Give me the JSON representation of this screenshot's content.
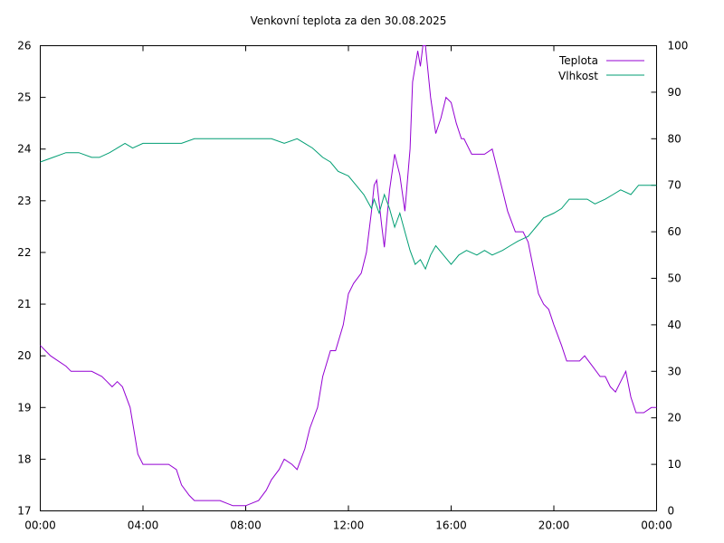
{
  "chart_data": {
    "type": "line",
    "title": "Venkovní teplota za den 30.08.2025",
    "xlabel": "",
    "ylabel": "",
    "y2label": "",
    "x_unit": "hours",
    "xlim": [
      0,
      24
    ],
    "ylim": [
      17,
      26
    ],
    "y2lim": [
      0,
      100
    ],
    "grid": false,
    "legend_position": "top-right",
    "x_tick_labels": [
      {
        "x": 0,
        "label": "00:00"
      },
      {
        "x": 4,
        "label": "04:00"
      },
      {
        "x": 8,
        "label": "08:00"
      },
      {
        "x": 12,
        "label": "12:00"
      },
      {
        "x": 16,
        "label": "16:00"
      },
      {
        "x": 20,
        "label": "20:00"
      },
      {
        "x": 24,
        "label": "00:00"
      }
    ],
    "y_ticks": [
      17,
      18,
      19,
      20,
      21,
      22,
      23,
      24,
      25,
      26
    ],
    "y2_ticks": [
      0,
      10,
      20,
      30,
      40,
      50,
      60,
      70,
      80,
      90,
      100
    ],
    "series": [
      {
        "name": "Teplota",
        "axis": "left",
        "color": "#9400d3",
        "x": [
          0,
          0.2,
          0.4,
          0.7,
          1.0,
          1.2,
          1.5,
          2.0,
          2.4,
          2.6,
          2.8,
          3.0,
          3.2,
          3.5,
          3.7,
          3.8,
          4.0,
          4.2,
          4.5,
          5.0,
          5.3,
          5.5,
          5.8,
          6.0,
          6.5,
          7.0,
          7.5,
          8.0,
          8.5,
          8.8,
          9.0,
          9.3,
          9.5,
          9.8,
          10.0,
          10.3,
          10.5,
          10.8,
          11.0,
          11.3,
          11.5,
          11.8,
          12.0,
          12.2,
          12.5,
          12.7,
          12.9,
          13.0,
          13.1,
          13.3,
          13.4,
          13.6,
          13.8,
          14.0,
          14.2,
          14.4,
          14.5,
          14.7,
          14.8,
          14.9,
          15.0,
          15.2,
          15.4,
          15.6,
          15.8,
          16.0,
          16.2,
          16.4,
          16.5,
          16.8,
          17.0,
          17.3,
          17.6,
          17.8,
          18.0,
          18.2,
          18.5,
          18.8,
          19.0,
          19.2,
          19.4,
          19.6,
          19.8,
          20.0,
          20.3,
          20.5,
          20.7,
          21.0,
          21.2,
          21.5,
          21.8,
          22.0,
          22.2,
          22.4,
          22.6,
          22.8,
          23.0,
          23.2,
          23.5,
          23.8,
          24.0
        ],
        "y": [
          20.2,
          20.1,
          20.0,
          19.9,
          19.8,
          19.7,
          19.7,
          19.7,
          19.6,
          19.5,
          19.4,
          19.5,
          19.4,
          19.0,
          18.4,
          18.1,
          17.9,
          17.9,
          17.9,
          17.9,
          17.8,
          17.5,
          17.3,
          17.2,
          17.2,
          17.2,
          17.1,
          17.1,
          17.2,
          17.4,
          17.6,
          17.8,
          18.0,
          17.9,
          17.8,
          18.2,
          18.6,
          19.0,
          19.6,
          20.1,
          20.1,
          20.6,
          21.2,
          21.4,
          21.6,
          22.0,
          22.8,
          23.3,
          23.4,
          22.5,
          22.1,
          23.2,
          23.9,
          23.5,
          22.8,
          24.0,
          25.3,
          25.9,
          25.6,
          26.0,
          26.0,
          25.0,
          24.3,
          24.6,
          25.0,
          24.9,
          24.5,
          24.2,
          24.2,
          23.9,
          23.9,
          23.9,
          24.0,
          23.6,
          23.2,
          22.8,
          22.4,
          22.4,
          22.2,
          21.7,
          21.2,
          21.0,
          20.9,
          20.6,
          20.2,
          19.9,
          19.9,
          19.9,
          20.0,
          19.8,
          19.6,
          19.6,
          19.4,
          19.3,
          19.5,
          19.7,
          19.2,
          18.9,
          18.9,
          19.0,
          19.0
        ]
      },
      {
        "name": "Vlhkost",
        "axis": "right",
        "color": "#009e73",
        "x": [
          0,
          0.5,
          1.0,
          1.5,
          2.0,
          2.3,
          2.7,
          3.0,
          3.3,
          3.6,
          4.0,
          4.5,
          5.0,
          5.5,
          6.0,
          6.5,
          7.0,
          7.5,
          8.0,
          8.5,
          9.0,
          9.5,
          10.0,
          10.3,
          10.6,
          11.0,
          11.3,
          11.6,
          12.0,
          12.3,
          12.6,
          12.9,
          13.0,
          13.2,
          13.4,
          13.6,
          13.8,
          14.0,
          14.2,
          14.4,
          14.6,
          14.8,
          15.0,
          15.2,
          15.4,
          15.7,
          16.0,
          16.3,
          16.6,
          17.0,
          17.3,
          17.6,
          18.0,
          18.3,
          18.6,
          19.0,
          19.3,
          19.6,
          20.0,
          20.3,
          20.6,
          21.0,
          21.3,
          21.6,
          22.0,
          22.3,
          22.6,
          23.0,
          23.3,
          23.6,
          24.0
        ],
        "y": [
          75,
          76,
          77,
          77,
          76,
          76,
          77,
          78,
          79,
          78,
          79,
          79,
          79,
          79,
          80,
          80,
          80,
          80,
          80,
          80,
          80,
          79,
          80,
          79,
          78,
          76,
          75,
          73,
          72,
          70,
          68,
          65,
          67,
          64,
          68,
          65,
          61,
          64,
          60,
          56,
          53,
          54,
          52,
          55,
          57,
          55,
          53,
          55,
          56,
          55,
          56,
          55,
          56,
          57,
          58,
          59,
          61,
          63,
          64,
          65,
          67,
          67,
          67,
          66,
          67,
          68,
          69,
          68,
          70,
          70,
          70
        ]
      }
    ]
  }
}
